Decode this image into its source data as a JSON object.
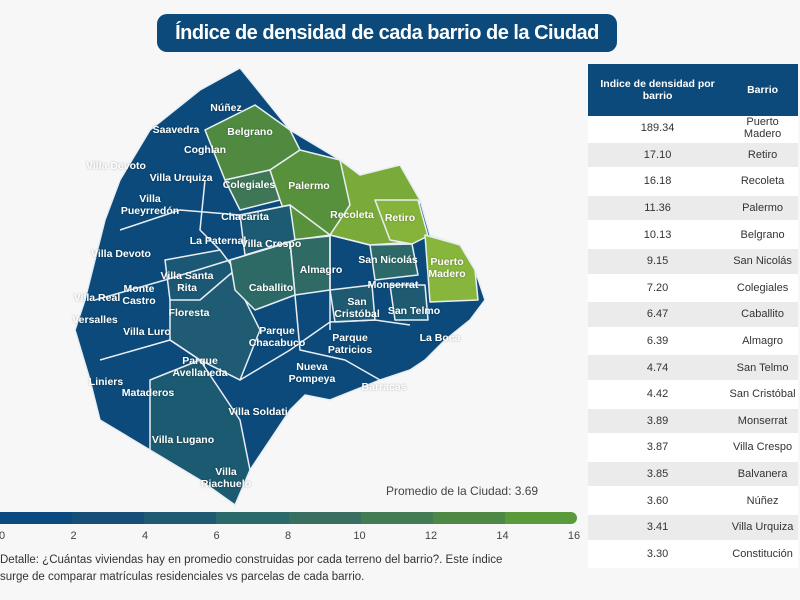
{
  "title": "Índice de densidad de cada barrio de la Ciudad",
  "map_labels": [
    "Núñez",
    "Saavedra",
    "Coghlan",
    "Belgrano",
    "Villa Urquiza",
    "Colegiales",
    "Palermo",
    "Villa Devoto",
    "Villa Pueyrredón",
    "Chacarita",
    "La Paternal",
    "Villa Crespo",
    "Recoleta",
    "Retiro",
    "Villa Devoto",
    "Almagro",
    "San Nicolás",
    "Monserrat",
    "Puerto Madero",
    "Villa Real",
    "Monte Castro",
    "Villa Santa Rita",
    "Caballito",
    "San Cristóbal",
    "San Telmo",
    "Versalles",
    "Villa Luro",
    "Floresta",
    "Liniers",
    "Parque Chacabuco",
    "Parque Patricios",
    "La Boca",
    "Parque Avellaneda",
    "Nueva Pompeya",
    "Barracas",
    "Mataderos",
    "Villa Soldati",
    "Villa Lugano",
    "Villa Riachuelo"
  ],
  "average_label": "Promedio de la Ciudad: 3.69",
  "scale": {
    "ticks": [
      "0",
      "2",
      "4",
      "6",
      "8",
      "10",
      "12",
      "14",
      "16"
    ],
    "colors": [
      "#0a4a7f",
      "#154f78",
      "#1e5a72",
      "#2a6a6a",
      "#386f60",
      "#437b52",
      "#4f8845",
      "#5a9a3a",
      "#6aa532"
    ]
  },
  "note": [
    "Detalle: ¿Cuántas viviendas hay en promedio construidas por cada terreno del barrio?. Este índice",
    "surge de comparar matrículas residenciales vs parcelas de cada barrio."
  ],
  "table": {
    "headers": [
      "Indice de densidad por barrio",
      "Barrio"
    ],
    "rows": [
      [
        "189.34",
        "Puerto Madero"
      ],
      [
        "17.10",
        "Retiro"
      ],
      [
        "16.18",
        "Recoleta"
      ],
      [
        "11.36",
        "Palermo"
      ],
      [
        "10.13",
        "Belgrano"
      ],
      [
        "9.15",
        "San Nicolás"
      ],
      [
        "7.20",
        "Colegiales"
      ],
      [
        "6.47",
        "Caballito"
      ],
      [
        "6.39",
        "Almagro"
      ],
      [
        "4.74",
        "San Telmo"
      ],
      [
        "4.42",
        "San Cristóbal"
      ],
      [
        "3.89",
        "Monserrat"
      ],
      [
        "3.87",
        "Villa Crespo"
      ],
      [
        "3.85",
        "Balvanera"
      ],
      [
        "3.60",
        "Núñez"
      ],
      [
        "3.41",
        "Villa Urquiza"
      ],
      [
        "3.30",
        "Constitución"
      ]
    ]
  }
}
